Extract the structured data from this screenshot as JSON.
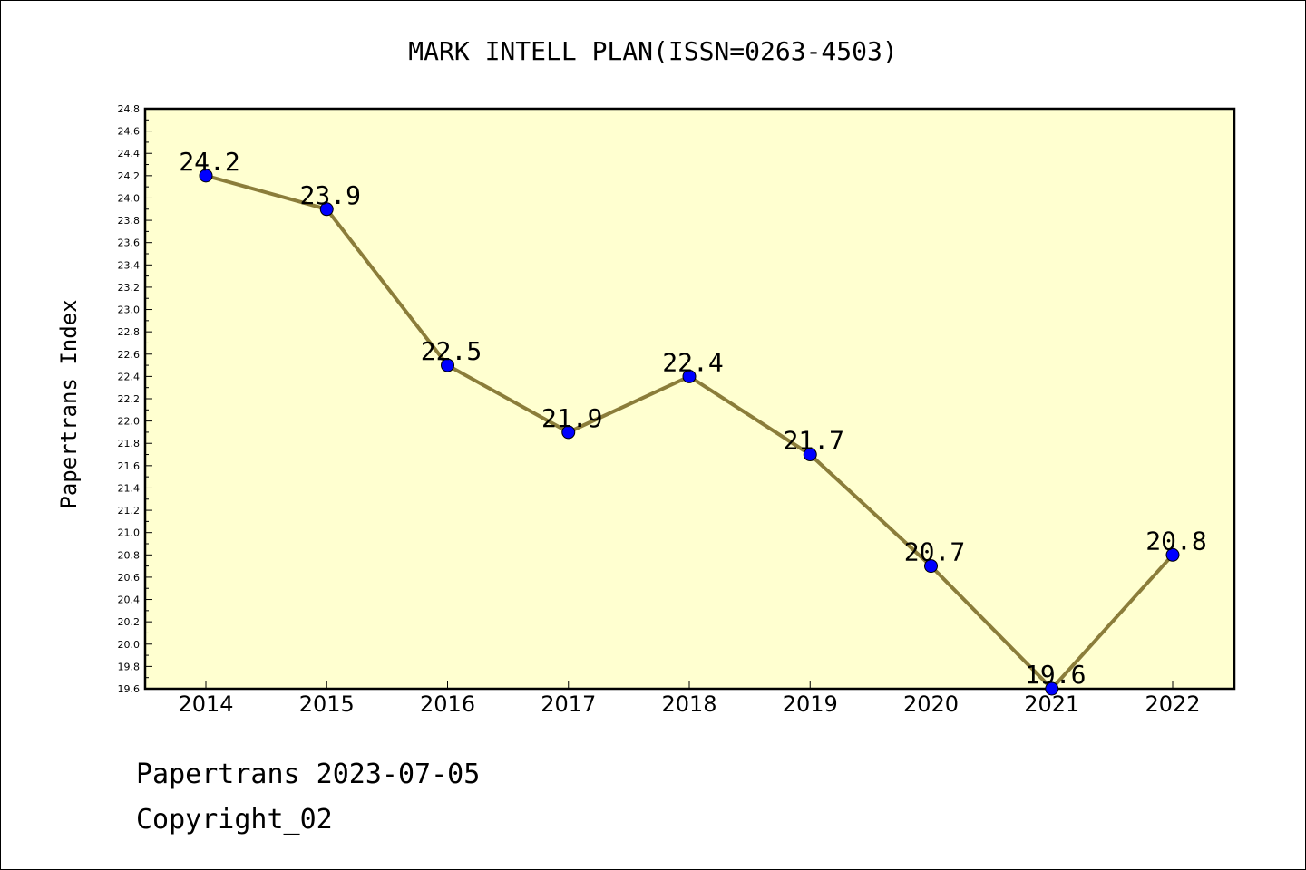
{
  "chart_data": {
    "type": "line",
    "title": "MARK INTELL PLAN(ISSN=0263-4503)",
    "xlabel": "",
    "ylabel": "Papertrans Index",
    "categories": [
      "2014",
      "2015",
      "2016",
      "2017",
      "2018",
      "2019",
      "2020",
      "2021",
      "2022"
    ],
    "series": [
      {
        "values": [
          24.2,
          23.9,
          22.5,
          21.9,
          22.4,
          21.7,
          20.7,
          19.6,
          20.8
        ]
      }
    ],
    "data_labels": [
      "24.2",
      "23.9",
      "22.5",
      "21.9",
      "22.4",
      "21.7",
      "20.7",
      "19.6",
      "20.8"
    ],
    "ylim": [
      19.6,
      24.8
    ],
    "yticks": [
      "19.6",
      "19.8",
      "20.0",
      "20.2",
      "20.4",
      "20.6",
      "20.8",
      "21.0",
      "21.2",
      "21.4",
      "21.6",
      "21.8",
      "22.0",
      "22.2",
      "22.4",
      "22.6",
      "22.8",
      "23.0",
      "23.2",
      "23.4",
      "23.6",
      "23.8",
      "24.0",
      "24.2",
      "24.4",
      "24.6",
      "24.8"
    ],
    "grid": false,
    "legend": "none",
    "colors": {
      "plot_background": "#ffffd0",
      "line": "#8b7d3a",
      "marker": "#0000ff"
    }
  },
  "footer": {
    "line1": "Papertrans 2023-07-05",
    "line2": "Copyright_02"
  }
}
